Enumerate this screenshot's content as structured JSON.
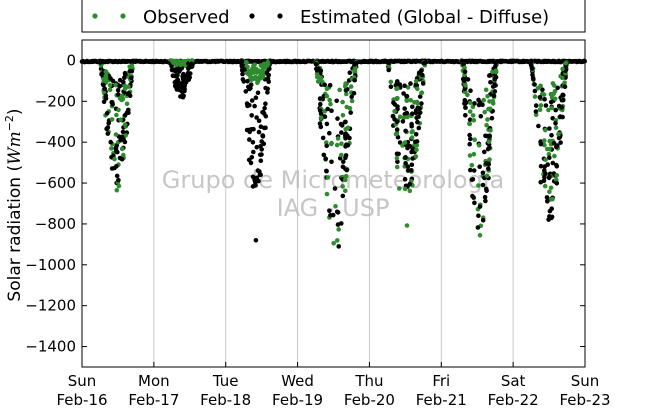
{
  "chart_data": {
    "type": "scatter",
    "ylabel": "Solar radiation ($Wm^{-2}$)",
    "ylabel_plain": "Solar radiation (",
    "ylabel_unit": "Wm",
    "ylabel_exp": "−2",
    "ylabel_close": ")",
    "ylim": [
      -1500,
      100
    ],
    "yticks": [
      0,
      -200,
      -400,
      -600,
      -800,
      -1000,
      -1200,
      -1400
    ],
    "ytick_labels": [
      "0",
      "−200",
      "−400",
      "−600",
      "−800",
      "−1000",
      "−1200",
      "−1400"
    ],
    "xlim": [
      0,
      7
    ],
    "xticks": [
      {
        "pos": 0,
        "line1": "Sun",
        "line2": "Feb-16"
      },
      {
        "pos": 1,
        "line1": "Mon",
        "line2": "Feb-17"
      },
      {
        "pos": 2,
        "line1": "Tue",
        "line2": "Feb-18"
      },
      {
        "pos": 3,
        "line1": "Wed",
        "line2": "Feb-19"
      },
      {
        "pos": 4,
        "line1": "Thu",
        "line2": "Feb-20"
      },
      {
        "pos": 5,
        "line1": "Fri",
        "line2": "Feb-21"
      },
      {
        "pos": 6,
        "line1": "Sat",
        "line2": "Feb-22"
      },
      {
        "pos": 7,
        "line1": "Sun",
        "line2": "Feb-23"
      }
    ],
    "grid": "vertical",
    "legend_position": "top",
    "series": [
      {
        "name": "Observed",
        "color": "#2e8b2e"
      },
      {
        "name": "Estimated (Global - Diffuse)",
        "color": "#000000"
      }
    ],
    "days": [
      {
        "start": 0.25,
        "end": 0.72,
        "obs_min": -640,
        "est_min": -620,
        "outliers": []
      },
      {
        "start": 1.22,
        "end": 1.55,
        "obs_min": -30,
        "est_min": -190,
        "outliers": []
      },
      {
        "start": 2.22,
        "end": 2.62,
        "obs_min": -120,
        "est_min": -680,
        "outliers": [
          -880
        ]
      },
      {
        "start": 3.25,
        "end": 3.82,
        "obs_min": -940,
        "est_min": -935,
        "outliers": []
      },
      {
        "start": 4.25,
        "end": 4.78,
        "obs_min": -810,
        "est_min": -690,
        "outliers": []
      },
      {
        "start": 5.28,
        "end": 5.78,
        "obs_min": -860,
        "est_min": -840,
        "outliers": []
      },
      {
        "start": 6.25,
        "end": 6.75,
        "obs_min": -790,
        "est_min": -800,
        "outliers": []
      }
    ]
  },
  "watermark": {
    "line1": "Grupo de Micrometeorologia",
    "line2": "IAG - USP"
  }
}
